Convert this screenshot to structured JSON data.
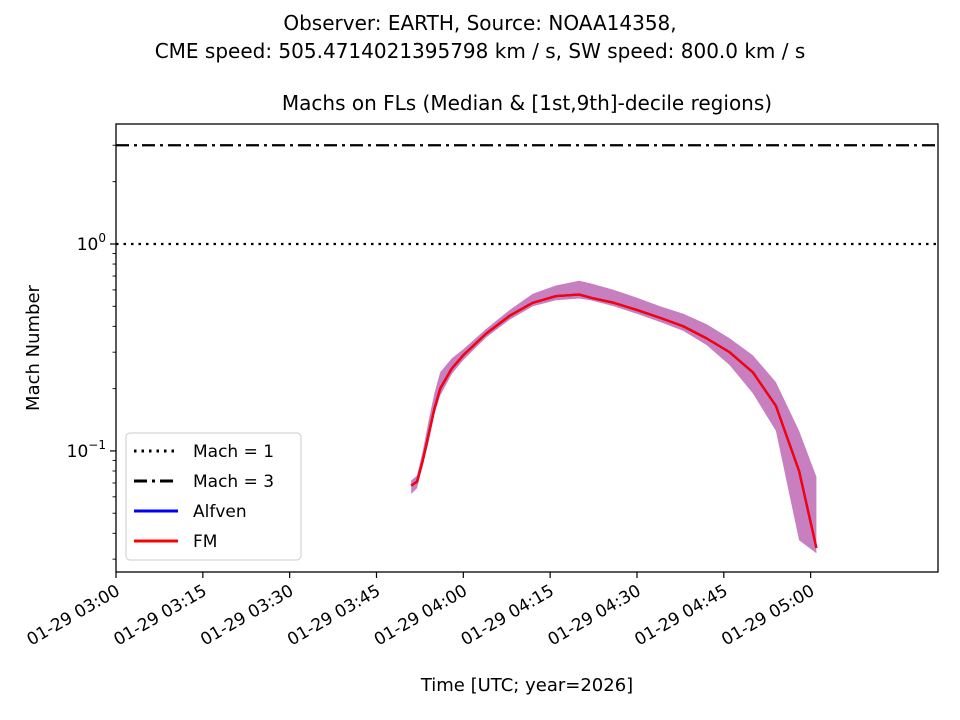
{
  "figure": {
    "suptitle_line1": "Observer: EARTH, Source: NOAA14358,",
    "suptitle_line2": "CME speed: 505.4714021395798 km / s, SW speed: 800.0 km / s"
  },
  "chart_data": {
    "type": "line",
    "title": "Machs on FLs (Median & [1st,9th]-decile regions)",
    "xlabel": "Time [UTC; year=2026]",
    "ylabel": "Mach Number",
    "yscale": "log",
    "xlim": [
      "2026-01-29 03:00",
      "2026-01-29 05:22"
    ],
    "ylim": [
      0.026,
      3.8
    ],
    "x_ticks": [
      "01-29 03:00",
      "01-29 03:15",
      "01-29 03:30",
      "01-29 03:45",
      "01-29 04:00",
      "01-29 04:15",
      "01-29 04:30",
      "01-29 04:45",
      "01-29 05:00"
    ],
    "y_ticks": [
      {
        "value": 0.1,
        "base": "10",
        "exp": "−1"
      },
      {
        "value": 1,
        "base": "10",
        "exp": "0"
      }
    ],
    "grid": false,
    "legend_position": "lower-left",
    "hlines": [
      {
        "name": "Mach = 1",
        "value": 1,
        "style": "dotted",
        "color": "#000000"
      },
      {
        "name": "Mach = 3",
        "value": 3,
        "style": "dashdot",
        "color": "#000000"
      }
    ],
    "series": [
      {
        "name": "Alfven",
        "color": "#0000ff",
        "x": [
          "2026-01-29 03:51",
          "2026-01-29 03:52",
          "2026-01-29 03:53",
          "2026-01-29 03:54",
          "2026-01-29 03:55",
          "2026-01-29 03:56",
          "2026-01-29 03:58",
          "2026-01-29 04:00",
          "2026-01-29 04:04",
          "2026-01-29 04:08",
          "2026-01-29 04:12",
          "2026-01-29 04:16",
          "2026-01-29 04:20",
          "2026-01-29 04:22",
          "2026-01-29 04:26",
          "2026-01-29 04:30",
          "2026-01-29 04:34",
          "2026-01-29 04:38",
          "2026-01-29 04:42",
          "2026-01-29 04:46",
          "2026-01-29 04:50",
          "2026-01-29 04:54",
          "2026-01-29 04:58",
          "2026-01-29 05:01"
        ],
        "values": [
          0.068,
          0.071,
          0.09,
          0.12,
          0.16,
          0.2,
          0.25,
          0.29,
          0.37,
          0.45,
          0.52,
          0.56,
          0.57,
          0.55,
          0.52,
          0.48,
          0.44,
          0.4,
          0.35,
          0.3,
          0.24,
          0.165,
          0.08,
          0.034
        ]
      },
      {
        "name": "FM",
        "color": "#ff0000",
        "x": [
          "2026-01-29 03:51",
          "2026-01-29 03:52",
          "2026-01-29 03:53",
          "2026-01-29 03:54",
          "2026-01-29 03:55",
          "2026-01-29 03:56",
          "2026-01-29 03:58",
          "2026-01-29 04:00",
          "2026-01-29 04:04",
          "2026-01-29 04:08",
          "2026-01-29 04:12",
          "2026-01-29 04:16",
          "2026-01-29 04:20",
          "2026-01-29 04:22",
          "2026-01-29 04:26",
          "2026-01-29 04:30",
          "2026-01-29 04:34",
          "2026-01-29 04:38",
          "2026-01-29 04:42",
          "2026-01-29 04:46",
          "2026-01-29 04:50",
          "2026-01-29 04:54",
          "2026-01-29 04:58",
          "2026-01-29 05:01"
        ],
        "values": [
          0.068,
          0.071,
          0.09,
          0.12,
          0.16,
          0.2,
          0.25,
          0.29,
          0.37,
          0.45,
          0.52,
          0.56,
          0.57,
          0.55,
          0.52,
          0.48,
          0.44,
          0.4,
          0.35,
          0.3,
          0.24,
          0.165,
          0.08,
          0.034
        ]
      }
    ],
    "decile_band": {
      "color": "#c77fbf",
      "x": [
        "2026-01-29 03:51",
        "2026-01-29 03:52",
        "2026-01-29 03:53",
        "2026-01-29 03:54",
        "2026-01-29 03:55",
        "2026-01-29 03:56",
        "2026-01-29 03:58",
        "2026-01-29 04:00",
        "2026-01-29 04:04",
        "2026-01-29 04:08",
        "2026-01-29 04:12",
        "2026-01-29 04:16",
        "2026-01-29 04:20",
        "2026-01-29 04:22",
        "2026-01-29 04:26",
        "2026-01-29 04:30",
        "2026-01-29 04:34",
        "2026-01-29 04:38",
        "2026-01-29 04:42",
        "2026-01-29 04:46",
        "2026-01-29 04:50",
        "2026-01-29 04:54",
        "2026-01-29 04:58",
        "2026-01-29 05:01"
      ],
      "lower": [
        0.062,
        0.066,
        0.085,
        0.11,
        0.15,
        0.185,
        0.235,
        0.275,
        0.355,
        0.43,
        0.5,
        0.535,
        0.545,
        0.535,
        0.5,
        0.46,
        0.42,
        0.38,
        0.325,
        0.26,
        0.19,
        0.125,
        0.037,
        0.032
      ],
      "upper": [
        0.072,
        0.076,
        0.1,
        0.14,
        0.19,
        0.24,
        0.28,
        0.31,
        0.39,
        0.48,
        0.575,
        0.63,
        0.665,
        0.645,
        0.6,
        0.55,
        0.5,
        0.46,
        0.41,
        0.35,
        0.29,
        0.215,
        0.125,
        0.075
      ]
    }
  }
}
